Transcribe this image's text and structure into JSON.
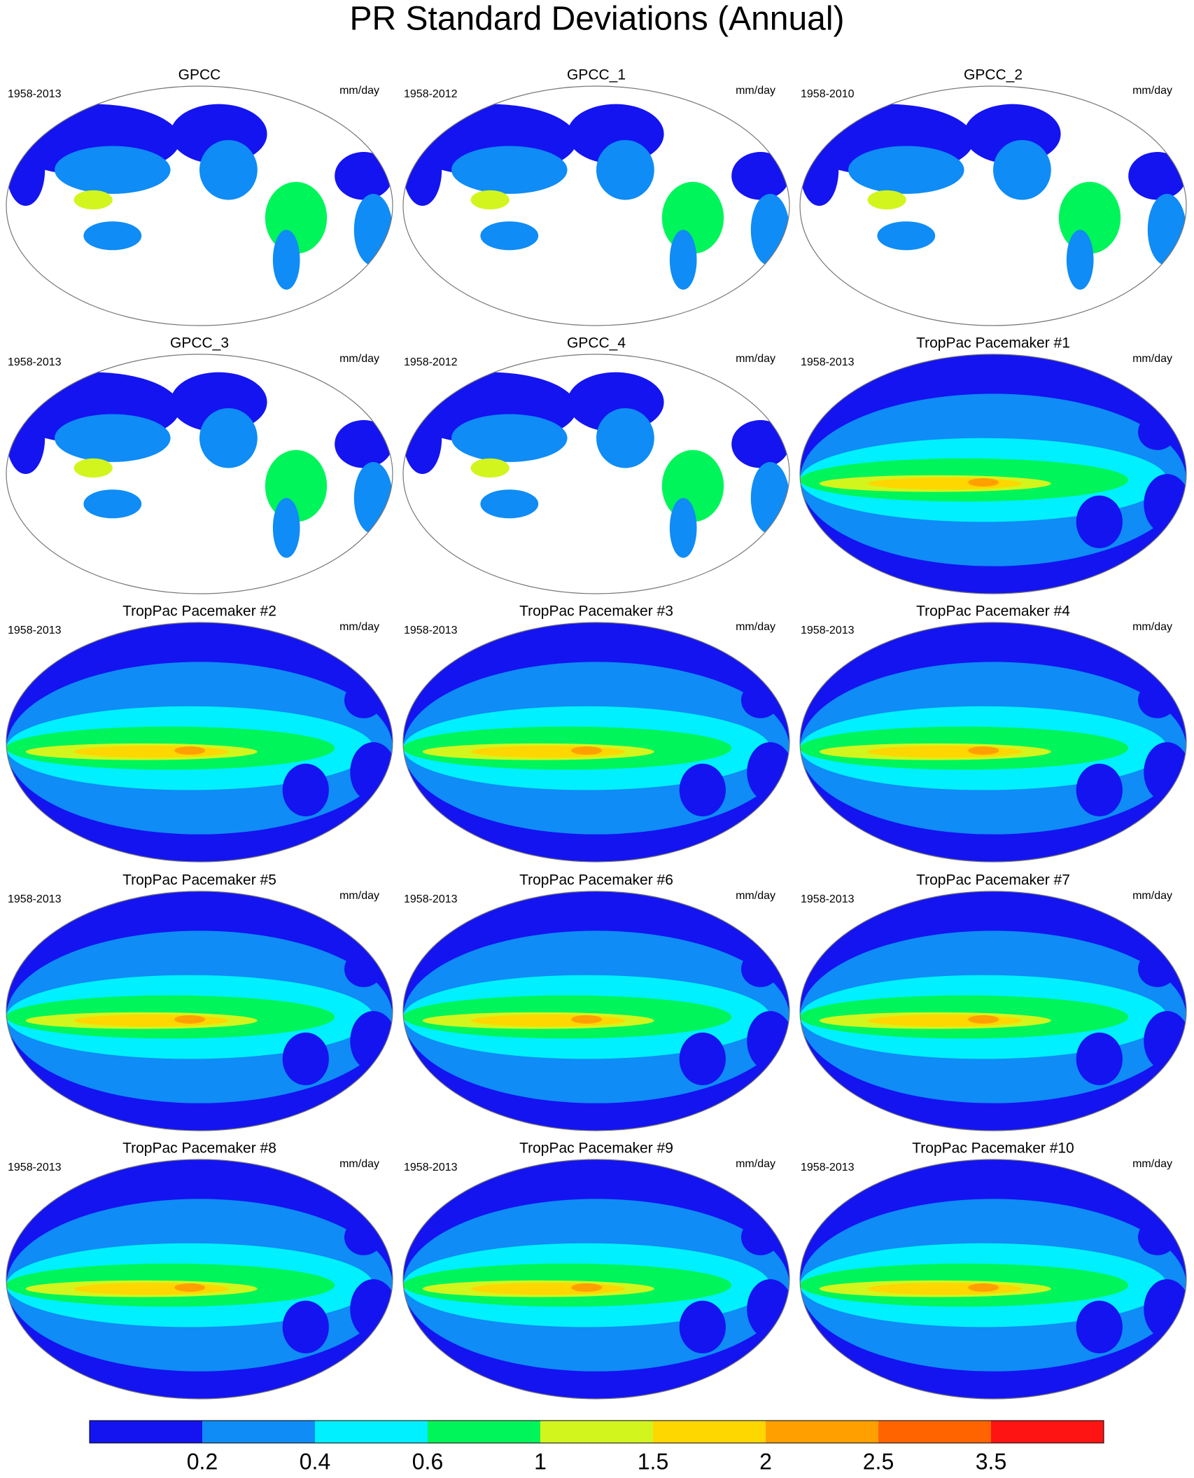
{
  "title": "PR Standard Deviations (Annual)",
  "panels": [
    {
      "title": "GPCC",
      "period": "1958-2013",
      "units": "mm/day"
    },
    {
      "title": "GPCC_1",
      "period": "1958-2012",
      "units": "mm/day"
    },
    {
      "title": "GPCC_2",
      "period": "1958-2010",
      "units": "mm/day"
    },
    {
      "title": "GPCC_3",
      "period": "1958-2013",
      "units": "mm/day"
    },
    {
      "title": "GPCC_4",
      "period": "1958-2012",
      "units": "mm/day"
    },
    {
      "title": "TropPac Pacemaker #1",
      "period": "1958-2013",
      "units": "mm/day"
    },
    {
      "title": "TropPac Pacemaker #2",
      "period": "1958-2013",
      "units": "mm/day"
    },
    {
      "title": "TropPac Pacemaker #3",
      "period": "1958-2013",
      "units": "mm/day"
    },
    {
      "title": "TropPac Pacemaker #4",
      "period": "1958-2013",
      "units": "mm/day"
    },
    {
      "title": "TropPac Pacemaker #5",
      "period": "1958-2013",
      "units": "mm/day"
    },
    {
      "title": "TropPac Pacemaker #6",
      "period": "1958-2013",
      "units": "mm/day"
    },
    {
      "title": "TropPac Pacemaker #7",
      "period": "1958-2013",
      "units": "mm/day"
    },
    {
      "title": "TropPac Pacemaker #8",
      "period": "1958-2013",
      "units": "mm/day"
    },
    {
      "title": "TropPac Pacemaker #9",
      "period": "1958-2013",
      "units": "mm/day"
    },
    {
      "title": "TropPac Pacemaker #10",
      "period": "1958-2013",
      "units": "mm/day"
    }
  ],
  "colorbar": {
    "levels": [
      0.2,
      0.4,
      0.6,
      1,
      1.5,
      2,
      2.5,
      3.5
    ],
    "colors": [
      "#1414f0",
      "#0f8cf5",
      "#00f0ff",
      "#00f55a",
      "#d2f51e",
      "#ffd700",
      "#ffa000",
      "#ff6400",
      "#ff1414"
    ]
  }
}
